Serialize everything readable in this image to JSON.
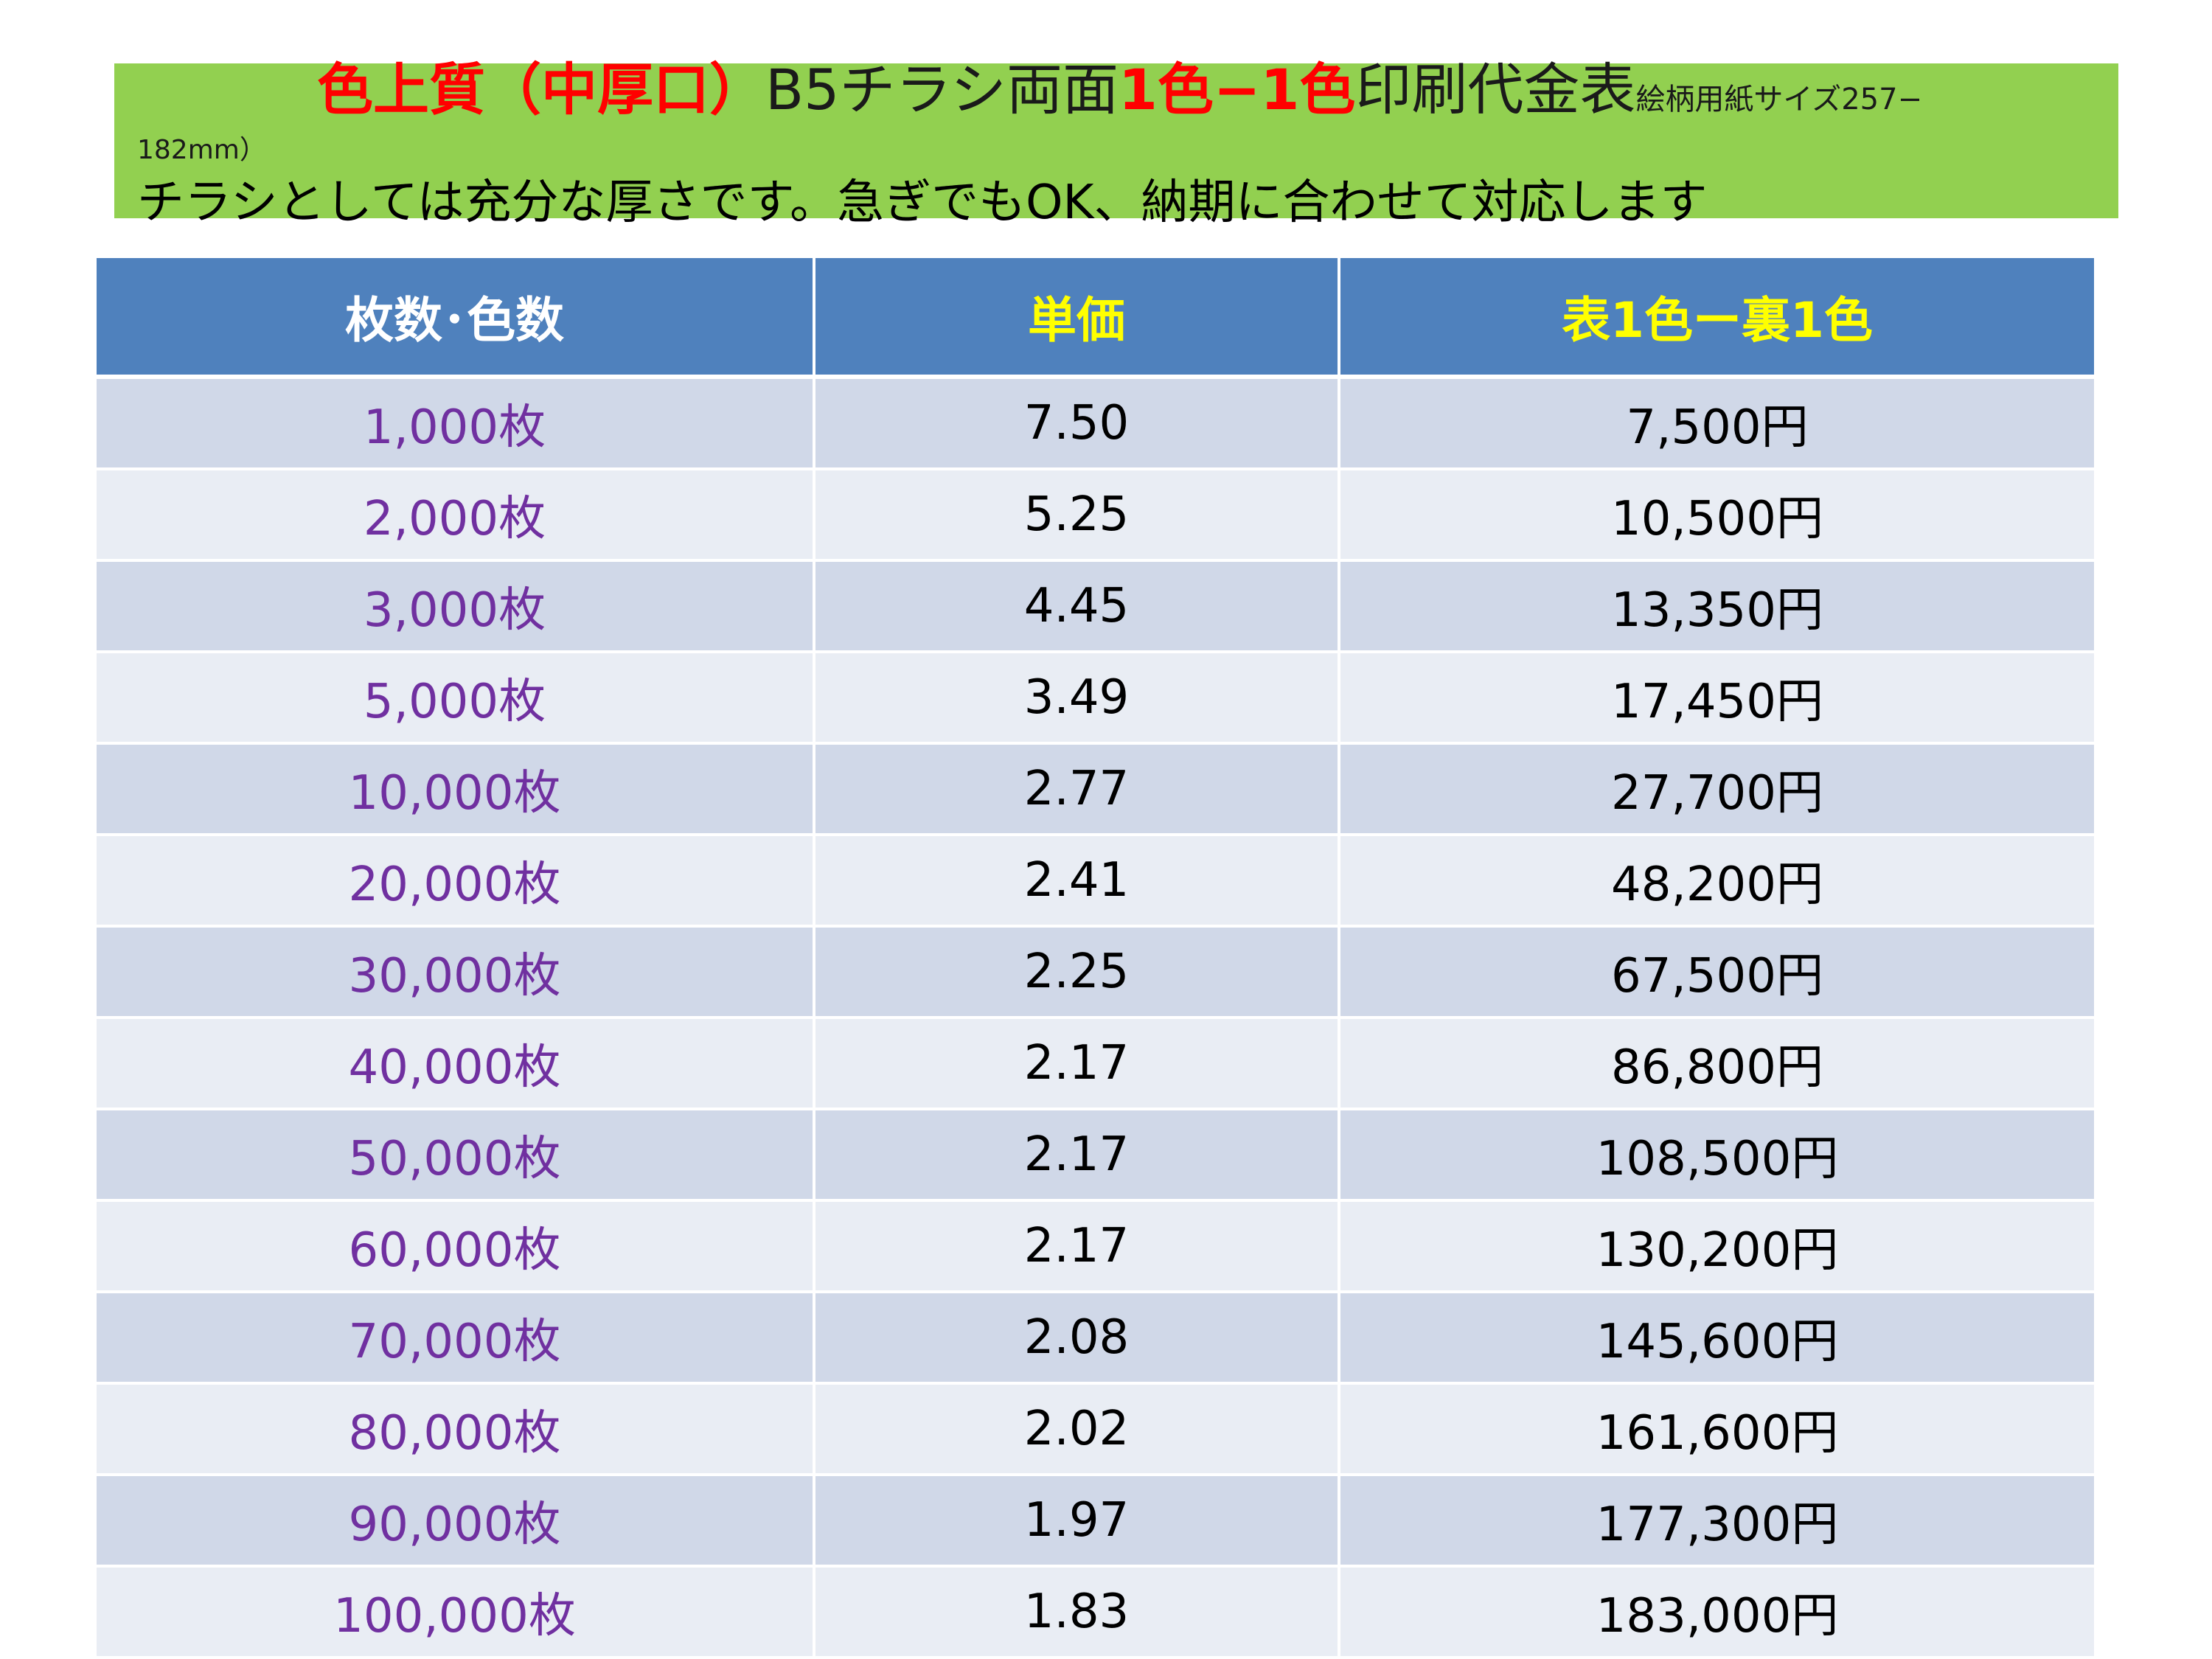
{
  "header": {
    "title_part1": "色上質（中厚口）",
    "title_part2": "B5チラシ両面",
    "title_part3": "1色−1色",
    "title_part4": "印刷代金表",
    "title_size_note": "絵柄用紙サイズ257−",
    "title_size_note_cont": "182mm）",
    "subtitle": "チラシとしては充分な厚さです。急ぎでもOK、納期に合わせて対応します",
    "banner_color": "#92d050"
  },
  "table": {
    "headers": {
      "quantity": "枚数･色数",
      "unit_price": "単価",
      "total": "表1色ー裏1色"
    },
    "rows": [
      {
        "quantity": "1,000枚",
        "unit_price": "7.50",
        "total": "7,500円"
      },
      {
        "quantity": "2,000枚",
        "unit_price": "5.25",
        "total": "10,500円"
      },
      {
        "quantity": "3,000枚",
        "unit_price": "4.45",
        "total": "13,350円"
      },
      {
        "quantity": "5,000枚",
        "unit_price": "3.49",
        "total": "17,450円"
      },
      {
        "quantity": "10,000枚",
        "unit_price": "2.77",
        "total": "27,700円"
      },
      {
        "quantity": "20,000枚",
        "unit_price": "2.41",
        "total": "48,200円"
      },
      {
        "quantity": "30,000枚",
        "unit_price": "2.25",
        "total": "67,500円"
      },
      {
        "quantity": "40,000枚",
        "unit_price": "2.17",
        "total": "86,800円"
      },
      {
        "quantity": "50,000枚",
        "unit_price": "2.17",
        "total": "108,500円"
      },
      {
        "quantity": "60,000枚",
        "unit_price": "2.17",
        "total": "130,200円"
      },
      {
        "quantity": "70,000枚",
        "unit_price": "2.08",
        "total": "145,600円"
      },
      {
        "quantity": "80,000枚",
        "unit_price": "2.02",
        "total": "161,600円"
      },
      {
        "quantity": "90,000枚",
        "unit_price": "1.97",
        "total": "177,300円"
      },
      {
        "quantity": "100,000枚",
        "unit_price": "1.83",
        "total": "183,000円"
      }
    ],
    "header_color": "#4f81bd",
    "row_color_odd": "#d0d8e8",
    "row_color_even": "#e9edf4",
    "quantity_text_color": "#7030a0"
  }
}
